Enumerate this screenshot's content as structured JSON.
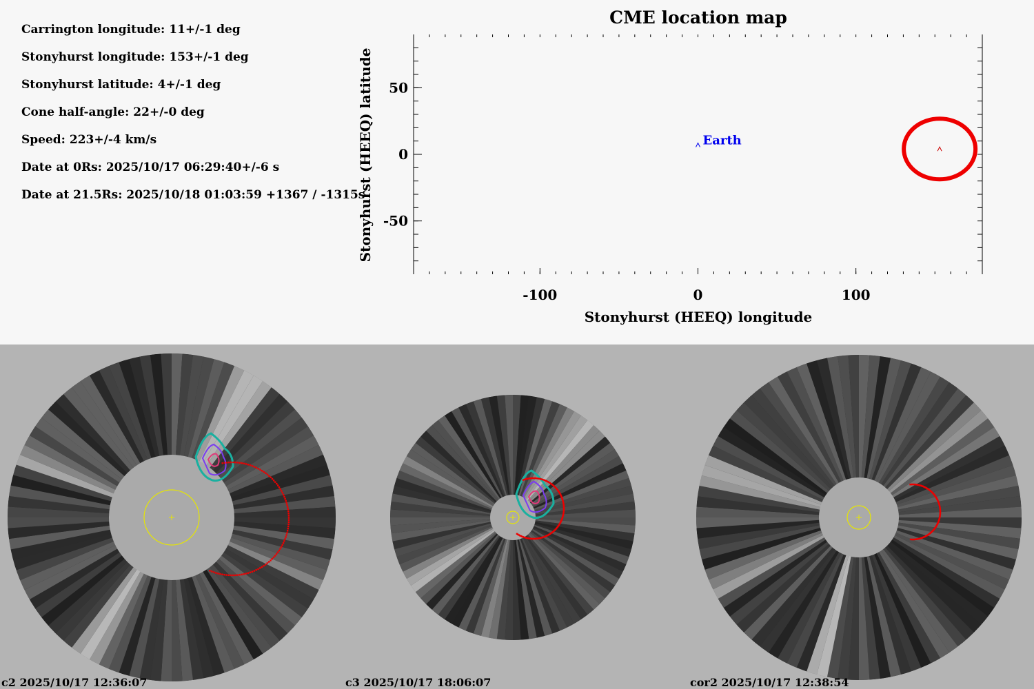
{
  "parameters": [
    "Carrington longitude: 11+/-1 deg",
    "Stonyhurst longitude: 153+/-1 deg",
    "Stonyhurst latitude: 4+/-1 deg",
    "Cone half-angle: 22+/-0 deg",
    "Speed: 223+/-4 km/s",
    "Date at 0Rs: 2025/10/17 06:29:40+/-6 s",
    "Date at 21.5Rs: 2025/10/18 01:03:59 +1367 / -1315s"
  ],
  "chart_data": {
    "type": "scatter",
    "title": "CME location map",
    "xlabel": "Stonyhurst (HEEQ) longitude",
    "ylabel": "Stonyhurst (HEEQ) latitude",
    "xlim": [
      -180,
      180
    ],
    "ylim": [
      -90,
      90
    ],
    "xticks": [
      -100,
      0,
      100
    ],
    "yticks": [
      -50,
      0,
      50
    ],
    "grid": false,
    "points": [
      {
        "label": "Earth",
        "x": 0,
        "y": 7,
        "color": "#0000ee",
        "marker": "caret"
      },
      {
        "label": "",
        "x": 153,
        "y": 4,
        "color": "#cc0000",
        "marker": "caret",
        "halo_color": "#ee0000"
      }
    ]
  },
  "coronagraphs": [
    {
      "instrument": "c2",
      "caption": "c2 2025/10/17 12:36:07"
    },
    {
      "instrument": "c3",
      "caption": "c3 2025/10/17 18:06:07"
    },
    {
      "instrument": "cor2",
      "caption": "cor2 2025/10/17 12:38:54"
    }
  ],
  "colors": {
    "cme_fit": "#ee0000",
    "sun_disk": "#e6e600",
    "occulter": "#aaaaaa",
    "earth": "#0000ee",
    "background_bottom": "#b4b4b4"
  }
}
